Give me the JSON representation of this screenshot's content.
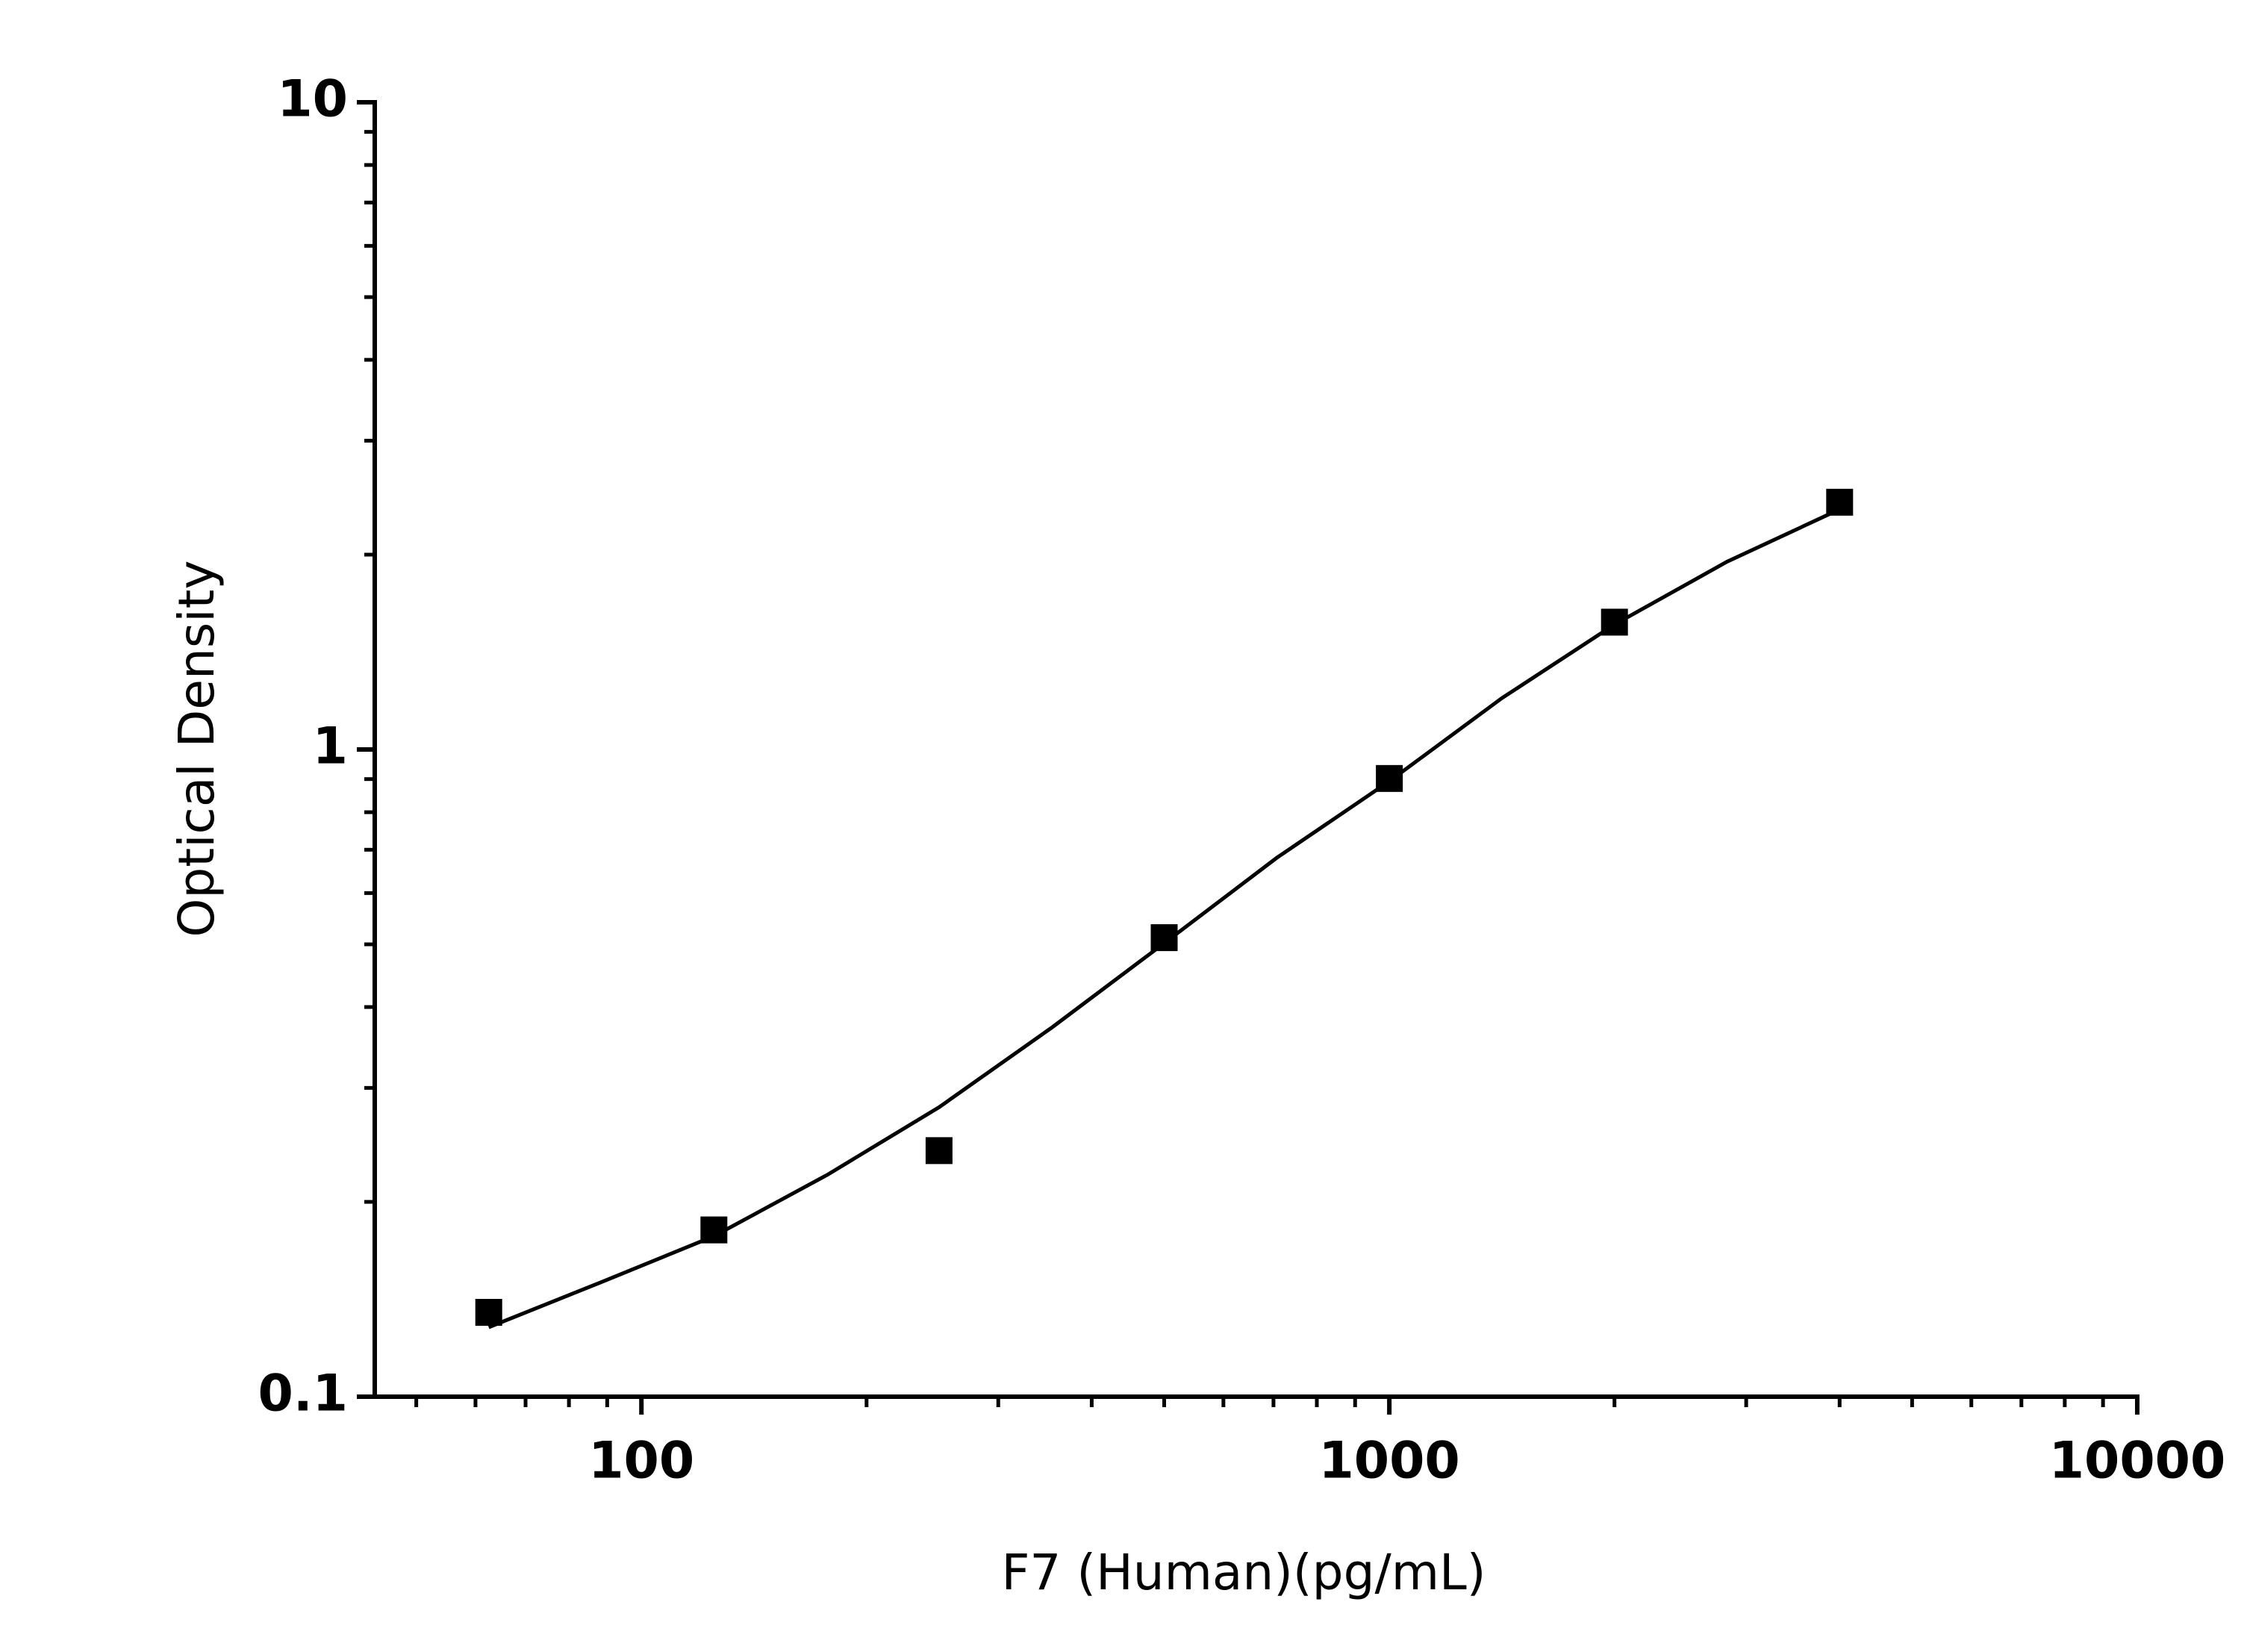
{
  "chart_data": {
    "type": "scatter",
    "x_label": "F7 (Human)(pg/mL)",
    "y_label": "Optical Density",
    "x_log": true,
    "y_log": true,
    "xlim": [
      44,
      10000
    ],
    "ylim": [
      0.1,
      10
    ],
    "xticks": [
      100,
      1000,
      10000
    ],
    "yticks": [
      0.1,
      1,
      10
    ],
    "xminor": [
      50,
      60,
      70,
      80,
      90,
      200,
      300,
      400,
      500,
      600,
      700,
      800,
      900,
      2000,
      3000,
      4000,
      5000,
      6000,
      7000,
      8000,
      9000
    ],
    "yminor": [
      0.2,
      0.3,
      0.4,
      0.5,
      0.6,
      0.7,
      0.8,
      0.9,
      2,
      3,
      4,
      5,
      6,
      7,
      8,
      9
    ],
    "color": "#000000",
    "x": [
      62.5,
      125,
      250,
      500,
      1000,
      2000,
      4000
    ],
    "values": [
      0.135,
      0.181,
      0.24,
      0.512,
      0.902,
      1.573,
      2.41
    ],
    "fit": {
      "x": [
        62.5,
        88,
        125,
        177,
        250,
        354,
        500,
        707,
        1000,
        1414,
        2000,
        2828,
        4000
      ],
      "values": [
        0.128,
        0.15,
        0.177,
        0.22,
        0.28,
        0.372,
        0.502,
        0.68,
        0.893,
        1.2,
        1.56,
        1.95,
        2.35
      ]
    }
  }
}
